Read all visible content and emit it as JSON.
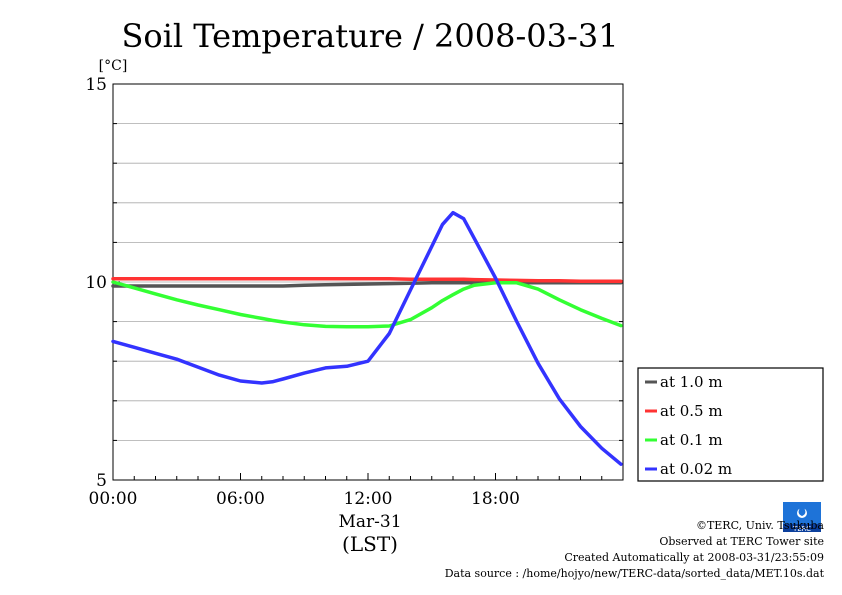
{
  "chart_data": {
    "type": "line",
    "title": "Soil Temperature / 2008-03-31",
    "ylabel": "[°C]",
    "xlabel_date": "Mar-31",
    "xlabel_unit": "(LST)",
    "xlim": [
      0,
      24
    ],
    "ylim": [
      5,
      15
    ],
    "x_ticks": [
      {
        "value": 0,
        "label": "00:00"
      },
      {
        "value": 6,
        "label": "06:00"
      },
      {
        "value": 12,
        "label": "12:00"
      },
      {
        "value": 18,
        "label": "18:00"
      }
    ],
    "y_ticks": [
      {
        "value": 5,
        "label": "5"
      },
      {
        "value": 10,
        "label": "10"
      },
      {
        "value": 15,
        "label": "15"
      }
    ],
    "grid": true,
    "legend_position": "right-bottom",
    "x": [
      0,
      1,
      2,
      3,
      4,
      5,
      6,
      7,
      7.5,
      8,
      9,
      10,
      11,
      12,
      13,
      14,
      15,
      15.5,
      16,
      16.5,
      17,
      18,
      19,
      20,
      21,
      22,
      23,
      23.9
    ],
    "series": [
      {
        "name": "at 1.0 m",
        "color": "#555555",
        "values": [
          9.9,
          9.9,
          9.9,
          9.9,
          9.9,
          9.9,
          9.9,
          9.9,
          9.9,
          9.9,
          9.92,
          9.93,
          9.94,
          9.95,
          9.96,
          9.97,
          9.98,
          9.98,
          9.98,
          9.98,
          9.98,
          9.98,
          9.98,
          9.98,
          9.98,
          9.98,
          9.98,
          9.98
        ]
      },
      {
        "name": "at 0.5 m",
        "color": "#ff3333",
        "values": [
          10.08,
          10.08,
          10.08,
          10.08,
          10.08,
          10.08,
          10.08,
          10.08,
          10.08,
          10.08,
          10.08,
          10.08,
          10.08,
          10.08,
          10.08,
          10.07,
          10.07,
          10.07,
          10.07,
          10.07,
          10.06,
          10.05,
          10.04,
          10.03,
          10.03,
          10.02,
          10.02,
          10.02
        ]
      },
      {
        "name": "at 0.1 m",
        "color": "#33ff33",
        "values": [
          10.0,
          9.85,
          9.7,
          9.55,
          9.42,
          9.3,
          9.18,
          9.08,
          9.03,
          8.99,
          8.92,
          8.88,
          8.87,
          8.87,
          8.89,
          9.05,
          9.35,
          9.53,
          9.68,
          9.82,
          9.92,
          9.98,
          9.98,
          9.82,
          9.55,
          9.3,
          9.08,
          8.9
        ]
      },
      {
        "name": "at 0.02 m",
        "color": "#3333ff",
        "values": [
          8.5,
          8.35,
          8.2,
          8.05,
          7.85,
          7.65,
          7.5,
          7.45,
          7.48,
          7.55,
          7.7,
          7.83,
          7.87,
          8.0,
          8.7,
          9.8,
          10.9,
          11.45,
          11.75,
          11.6,
          11.1,
          10.1,
          9.0,
          7.95,
          7.05,
          6.35,
          5.8,
          5.4
        ]
      }
    ]
  },
  "footer": {
    "copyright": "©TERC, Univ. Tsukuba",
    "site": "Observed at TERC Tower site",
    "created": "Created Automatically at 2008-03-31/23:55:09",
    "source": "Data source : /home/hojyo/new/TERC-data/sorted_data/MET.10s.dat",
    "logo_text": "TERC"
  }
}
